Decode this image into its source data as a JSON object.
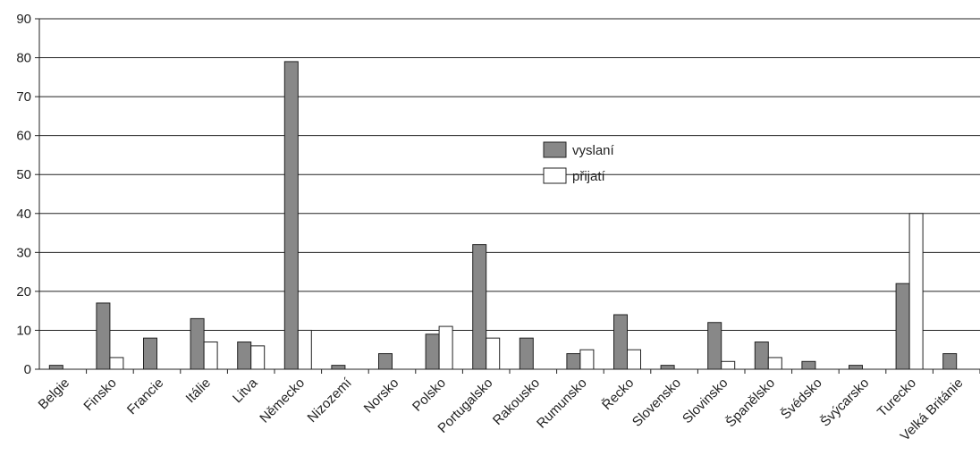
{
  "chart_data": {
    "type": "bar",
    "categories": [
      "Belgie",
      "Finsko",
      "Francie",
      "Itálie",
      "Litva",
      "Německo",
      "Nizozemí",
      "Norsko",
      "Polsko",
      "Portugalsko",
      "Rakousko",
      "Rumunsko",
      "Řecko",
      "Slovensko",
      "Slovinsko",
      "Španělsko",
      "Švédsko",
      "Švýcarsko",
      "Turecko",
      "Velká Británie"
    ],
    "series": [
      {
        "name": "vyslaní",
        "color": "#888888",
        "values": [
          1,
          17,
          8,
          13,
          7,
          79,
          1,
          4,
          9,
          32,
          8,
          4,
          14,
          1,
          12,
          7,
          2,
          1,
          22,
          4
        ]
      },
      {
        "name": "přijatí",
        "color": "#ffffff",
        "values": [
          0,
          3,
          0,
          7,
          6,
          10,
          0,
          0,
          11,
          8,
          0,
          5,
          5,
          0,
          2,
          3,
          0,
          0,
          40,
          0
        ]
      }
    ],
    "ylim": [
      0,
      90
    ],
    "yticks": [
      0,
      10,
      20,
      30,
      40,
      50,
      60,
      70,
      80,
      90
    ],
    "grid": true,
    "legend_position": "center"
  }
}
